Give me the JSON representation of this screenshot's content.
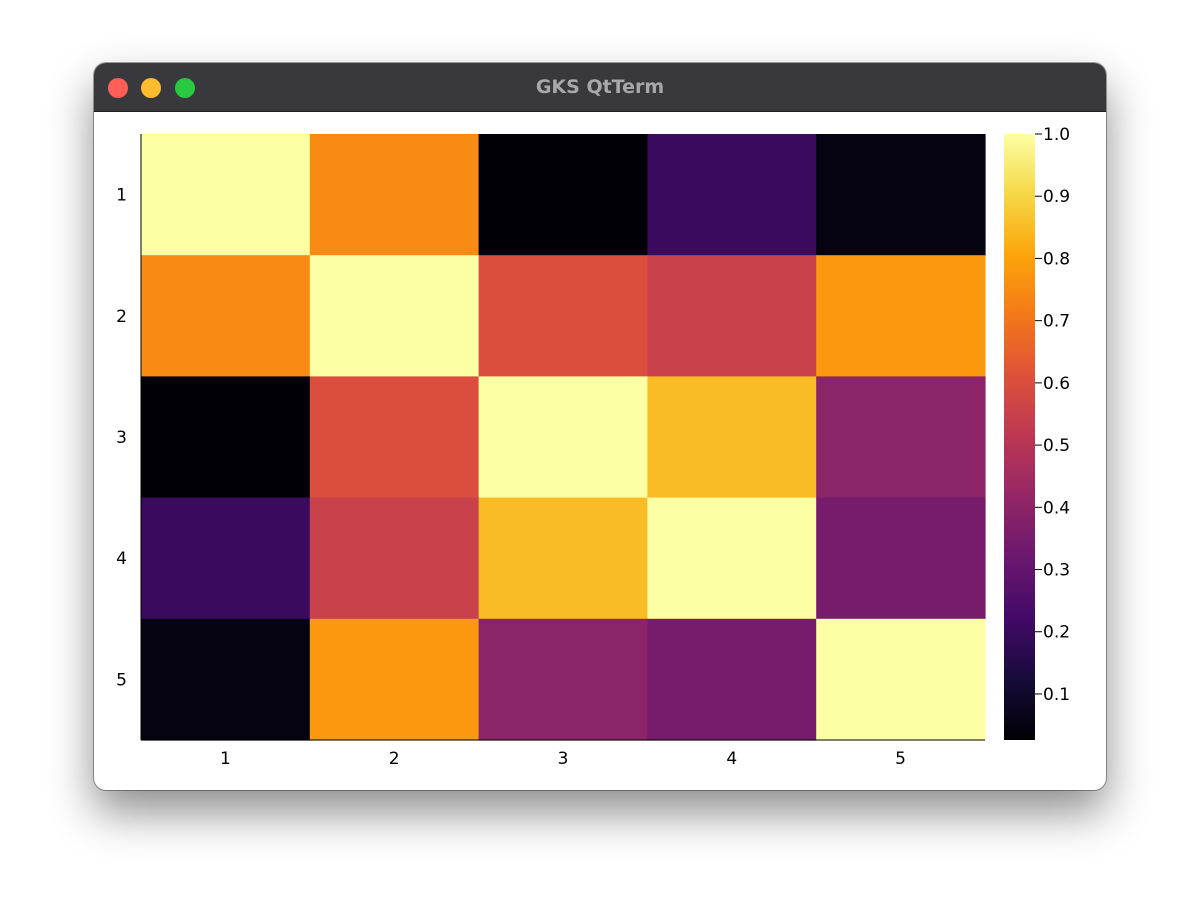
{
  "window": {
    "title": "GKS QtTerm",
    "buttons": [
      "close",
      "minimize",
      "maximize"
    ]
  },
  "chart_data": {
    "type": "heatmap",
    "title": "",
    "xlabel": "",
    "ylabel": "",
    "x_categories": [
      "1",
      "2",
      "3",
      "4",
      "5"
    ],
    "y_categories": [
      "1",
      "2",
      "3",
      "4",
      "5"
    ],
    "values": [
      [
        1.0,
        0.75,
        0.03,
        0.2,
        0.05
      ],
      [
        0.75,
        1.0,
        0.6,
        0.55,
        0.78
      ],
      [
        0.03,
        0.6,
        1.0,
        0.85,
        0.4
      ],
      [
        0.2,
        0.55,
        0.85,
        1.0,
        0.35
      ],
      [
        0.05,
        0.78,
        0.4,
        0.35,
        1.0
      ]
    ],
    "colormap": "inferno",
    "colorbar": {
      "range": [
        0.026,
        1.0
      ],
      "ticks": [
        0.1,
        0.2,
        0.3,
        0.4,
        0.5,
        0.6,
        0.7,
        0.8,
        0.9,
        1.0
      ],
      "tick_labels": [
        "0.1",
        "0.2",
        "0.3",
        "0.4",
        "0.5",
        "0.6",
        "0.7",
        "0.8",
        "0.9",
        "1.0"
      ]
    },
    "grid": false
  }
}
